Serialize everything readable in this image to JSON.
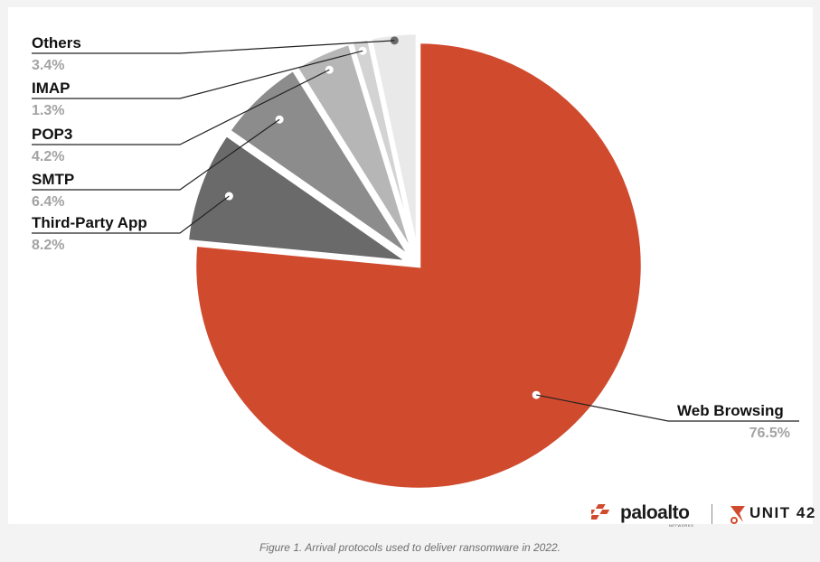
{
  "caption": "Figure 1. Arrival protocols used to deliver ransomware in 2022.",
  "logos": {
    "paloalto": "paloalto",
    "paloalto_sub": "NETWORKS",
    "unit42": "UNIT 42"
  },
  "chart_data": {
    "type": "pie",
    "title": "",
    "slices": [
      {
        "label": "Web Browsing",
        "value": 76.5,
        "pct_label": "76.5%",
        "color": "#d04a2e"
      },
      {
        "label": "Third-Party App",
        "value": 8.2,
        "pct_label": "8.2%",
        "color": "#6a6a6a"
      },
      {
        "label": "SMTP",
        "value": 6.4,
        "pct_label": "6.4%",
        "color": "#8c8c8c"
      },
      {
        "label": "POP3",
        "value": 4.2,
        "pct_label": "4.2%",
        "color": "#b6b6b6"
      },
      {
        "label": "IMAP",
        "value": 1.3,
        "pct_label": "1.3%",
        "color": "#d3d3d3"
      },
      {
        "label": "Others",
        "value": 3.4,
        "pct_label": "3.4%",
        "color": "#e9e9e9"
      }
    ],
    "legend": "none"
  }
}
